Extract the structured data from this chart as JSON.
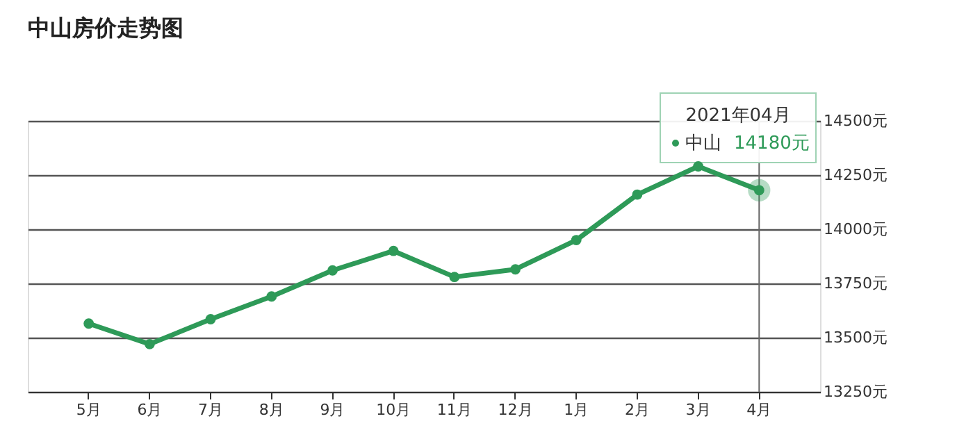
{
  "chart_data": {
    "type": "line",
    "title": "中山房价走势图",
    "categories": [
      "5月",
      "6月",
      "7月",
      "8月",
      "9月",
      "10月",
      "11月",
      "12月",
      "1月",
      "2月",
      "3月",
      "4月"
    ],
    "series": [
      {
        "name": "中山",
        "color": "#2e9a58",
        "values": [
          13565,
          13470,
          13585,
          13690,
          13810,
          13900,
          13780,
          13815,
          13950,
          14160,
          14290,
          14180
        ],
        "value_labels": [
          null,
          null,
          null,
          null,
          null,
          null,
          null,
          null,
          null,
          null,
          null,
          "14180元"
        ]
      }
    ],
    "annotations": [
      "2021年04月"
    ],
    "ref_lines": [
      {
        "axis": "x",
        "value": "4月",
        "label": null,
        "color": "#666666"
      }
    ],
    "ylim": [
      13250,
      14500
    ],
    "yticks": [
      {
        "value": 13250,
        "label": "13250元"
      },
      {
        "value": 13500,
        "label": "13500元"
      },
      {
        "value": 13750,
        "label": "13750元"
      },
      {
        "value": 14000,
        "label": "14000元"
      },
      {
        "value": 14250,
        "label": "14250元"
      },
      {
        "value": 14500,
        "label": "14500元"
      }
    ],
    "grid": "y",
    "legend": "top right",
    "marker": "circle",
    "line_style": "solid"
  }
}
